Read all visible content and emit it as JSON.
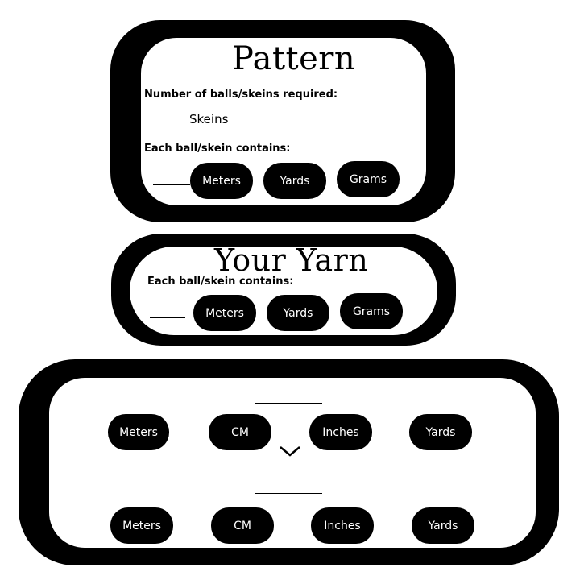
{
  "pattern": {
    "title": "Pattern",
    "balls_label": "Number of balls/skeins required:",
    "skeins_unit": "Skeins",
    "contains_label": "Each ball/skein contains:",
    "buttons": {
      "meters": "Meters",
      "yards": "Yards",
      "grams": "Grams"
    }
  },
  "your_yarn": {
    "title": "Your Yarn",
    "contains_label": "Each ball/skein contains:",
    "buttons": {
      "meters": "Meters",
      "yards": "Yards",
      "grams": "Grams"
    }
  },
  "converter": {
    "from_units": [
      "Meters",
      "CM",
      "Inches",
      "Yards"
    ],
    "to_units": [
      "Meters",
      "CM",
      "Inches",
      "Yards"
    ],
    "arrow_icon": "chevron-down-icon"
  }
}
